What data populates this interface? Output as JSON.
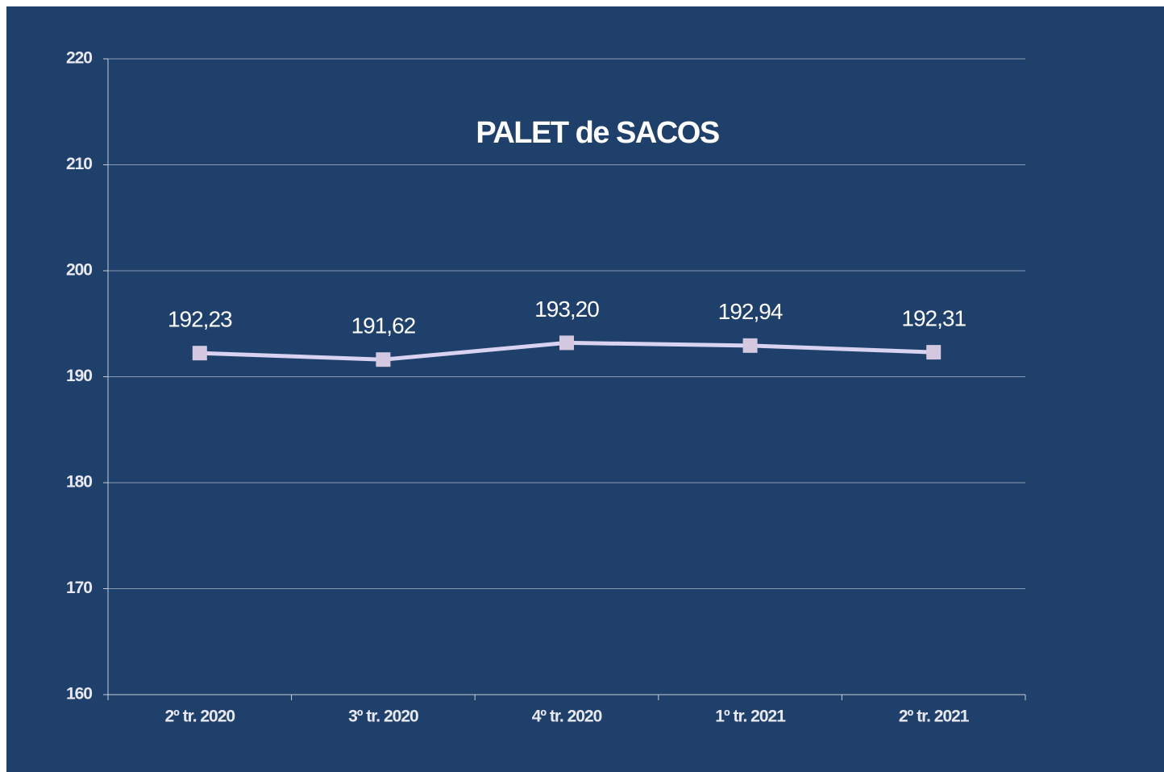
{
  "chart_data": {
    "type": "line",
    "title": "PALET de SACOS",
    "categories": [
      "2º tr. 2020",
      "3º tr. 2020",
      "4º tr. 2020",
      "1º tr. 2021",
      "2º tr. 2021"
    ],
    "values": [
      192.23,
      191.62,
      193.2,
      192.94,
      192.31
    ],
    "value_labels": [
      "192,23",
      "191,62",
      "193,20",
      "192,94",
      "192,31"
    ],
    "color": "#d9d2f0",
    "marker_color": "#d3c8e0",
    "ylim": [
      160,
      220
    ],
    "yticks": [
      160,
      170,
      180,
      190,
      200,
      210,
      220
    ],
    "grid": true
  }
}
